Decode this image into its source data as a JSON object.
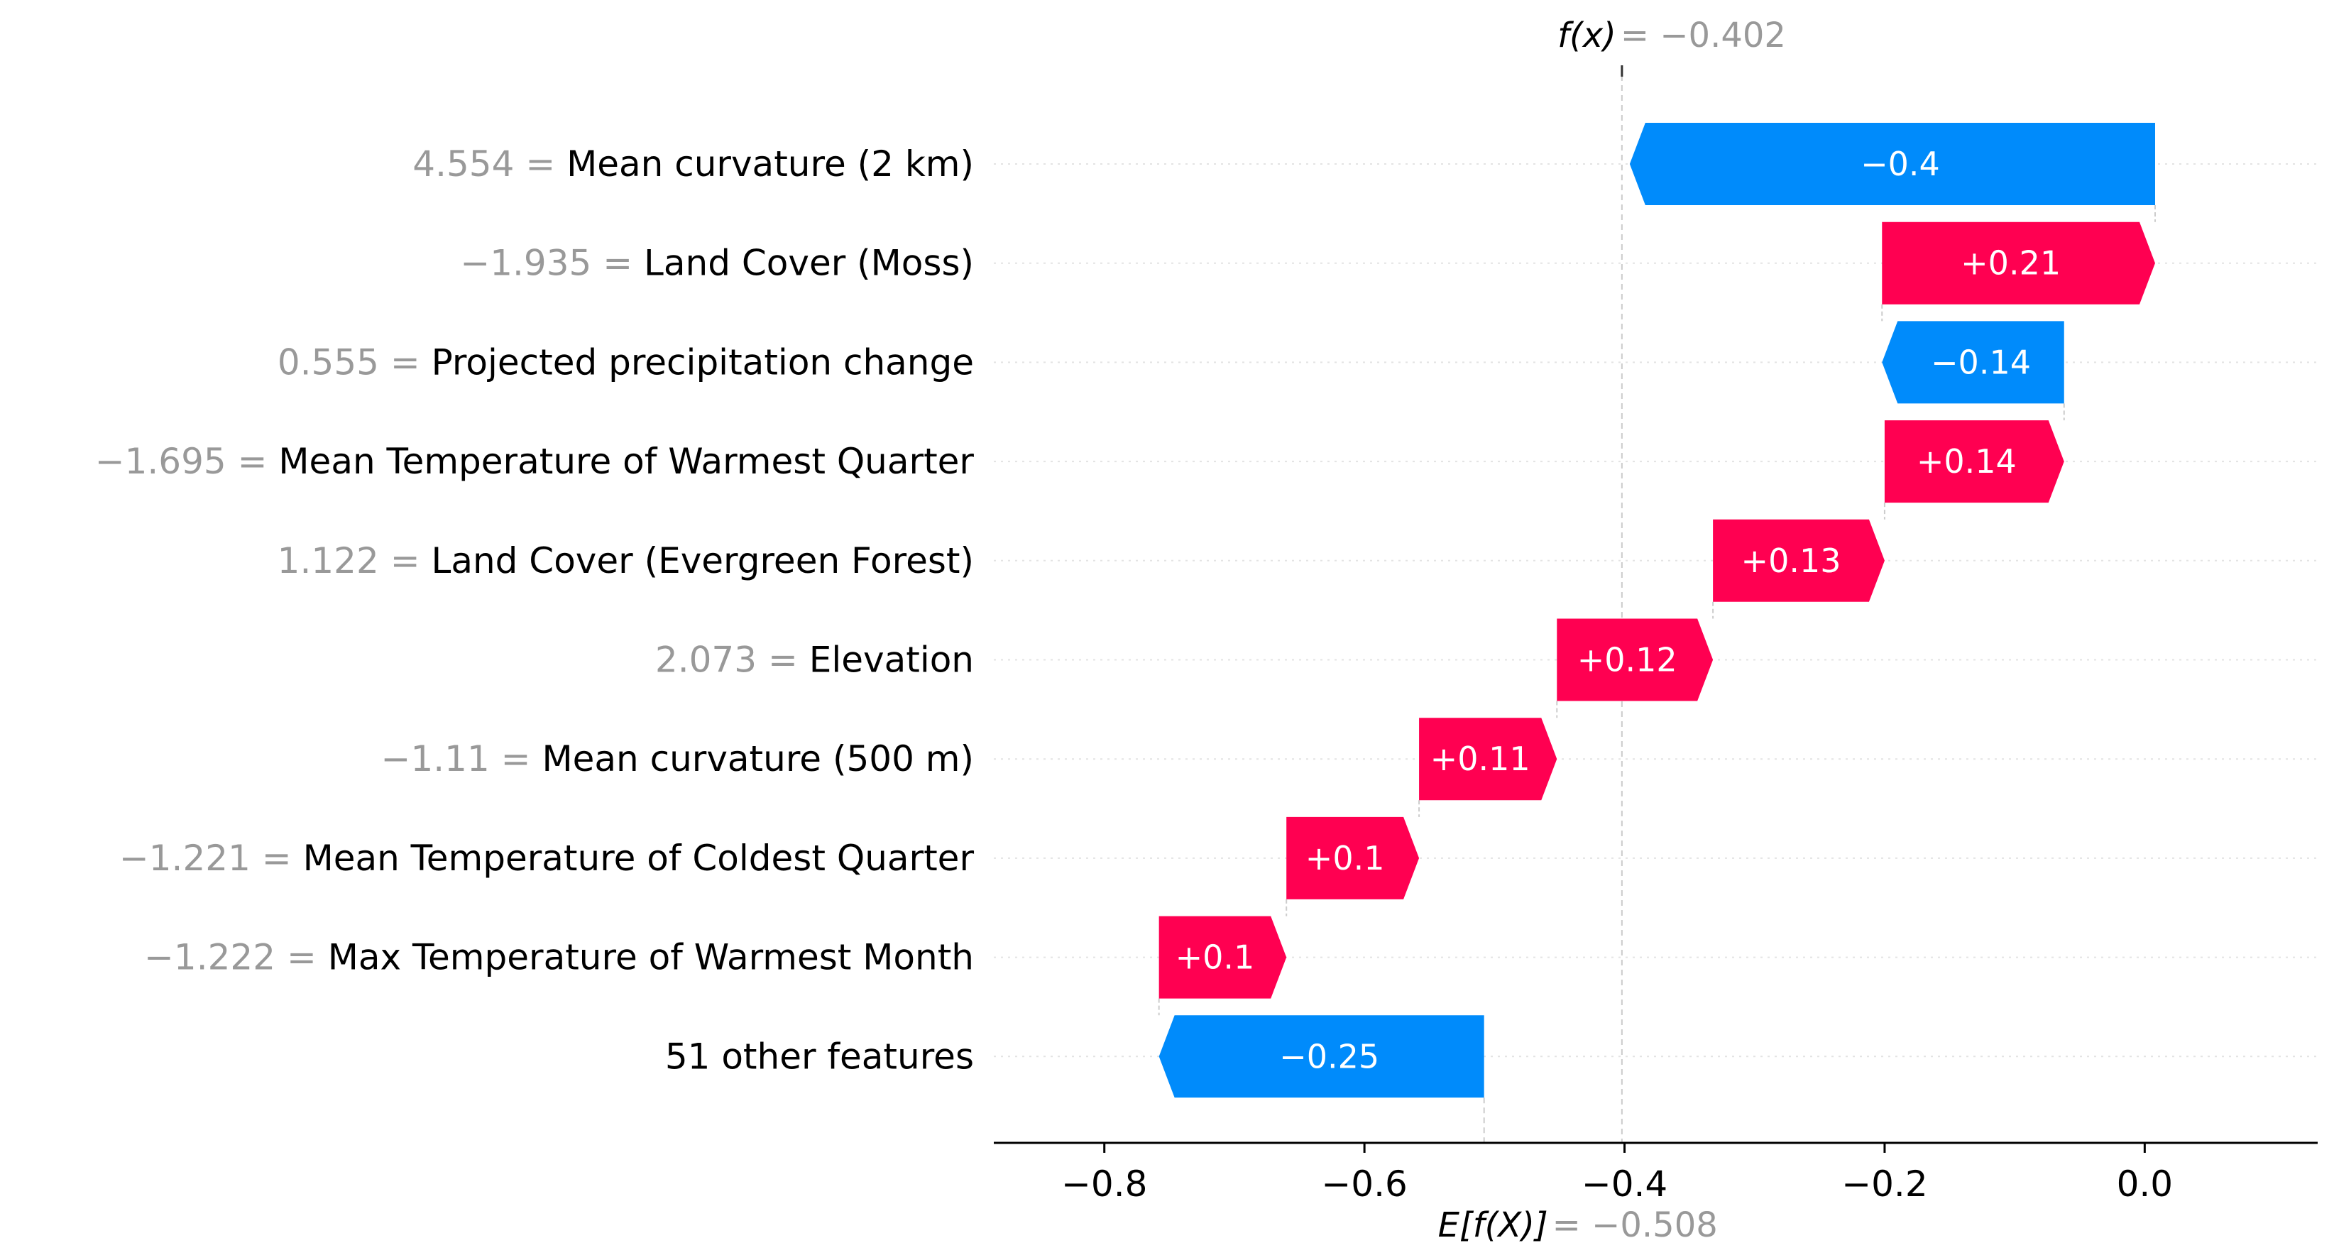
{
  "chart_data": {
    "type": "waterfall",
    "fx_label": "f(x)",
    "fx_value": "−0.402",
    "ex_label": "E[f(X)]",
    "ex_value": "−0.508",
    "fx": -0.402,
    "ex": -0.508,
    "xlim": [
      -0.885,
      0.133
    ],
    "xticks": [
      -0.8,
      -0.6,
      -0.4,
      -0.2,
      0.0
    ],
    "xtick_labels": [
      "−0.8",
      "−0.6",
      "−0.4",
      "−0.2",
      "0.0"
    ],
    "features": [
      {
        "value": "4.554",
        "name": "Mean curvature (2 km)",
        "shap": -0.404,
        "label": "−0.4"
      },
      {
        "value": "−1.935",
        "name": "Land Cover (Moss)",
        "shap": 0.21,
        "label": "+0.21"
      },
      {
        "value": "0.555",
        "name": "Projected precipitation change",
        "shap": -0.14,
        "label": "−0.14"
      },
      {
        "value": "−1.695",
        "name": "Mean Temperature of Warmest Quarter",
        "shap": 0.138,
        "label": "+0.14"
      },
      {
        "value": "1.122",
        "name": "Land Cover (Evergreen Forest)",
        "shap": 0.132,
        "label": "+0.13"
      },
      {
        "value": "2.073",
        "name": "Elevation",
        "shap": 0.12,
        "label": "+0.12"
      },
      {
        "value": "−1.11",
        "name": "Mean curvature (500 m)",
        "shap": 0.106,
        "label": "+0.11"
      },
      {
        "value": "−1.221",
        "name": "Mean Temperature of Coldest Quarter",
        "shap": 0.102,
        "label": "+0.1"
      },
      {
        "value": "−1.222",
        "name": "Max Temperature of Warmest Month",
        "shap": 0.098,
        "label": "+0.1"
      },
      {
        "value": "",
        "name": "51 other features",
        "shap": -0.25,
        "label": "−0.25"
      }
    ],
    "colors": {
      "positive": "#ff0051",
      "negative": "#008bfb",
      "value_text": "#999999",
      "label_text": "#000000",
      "grid": "#cccccc"
    }
  }
}
